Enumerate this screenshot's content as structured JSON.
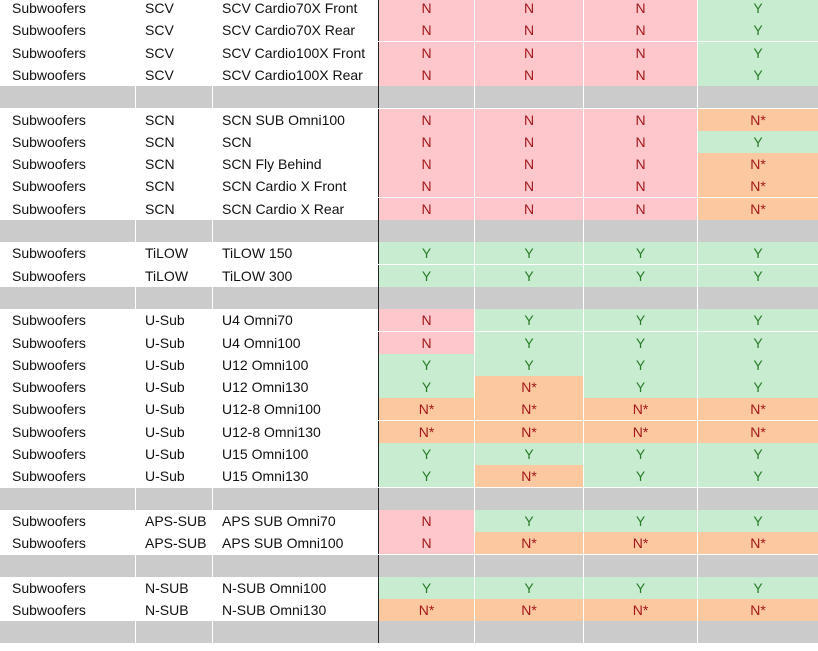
{
  "colors": {
    "yes_bg": "#c8ecd0",
    "yes_text": "#2a7d2a",
    "no_bg": "#fdc7cc",
    "no_text": "#a3191c",
    "cond_bg": "#fcc8a0",
    "cond_text": "#a3191c",
    "separator": "#cbcbcb"
  },
  "rows": [
    {
      "type": "data",
      "category": "Subwoofers",
      "series": "SCV",
      "model": "SCV Cardio70X Front",
      "v": [
        "N",
        "N",
        "N",
        "Y"
      ]
    },
    {
      "type": "data",
      "category": "Subwoofers",
      "series": "SCV",
      "model": "SCV Cardio70X Rear",
      "v": [
        "N",
        "N",
        "N",
        "Y"
      ]
    },
    {
      "type": "data",
      "category": "Subwoofers",
      "series": "SCV",
      "model": "SCV Cardio100X Front",
      "v": [
        "N",
        "N",
        "N",
        "Y"
      ]
    },
    {
      "type": "data",
      "category": "Subwoofers",
      "series": "SCV",
      "model": "SCV Cardio100X Rear",
      "v": [
        "N",
        "N",
        "N",
        "Y"
      ]
    },
    {
      "type": "sep"
    },
    {
      "type": "data",
      "category": "Subwoofers",
      "series": "SCN",
      "model": "SCN SUB Omni100",
      "v": [
        "N",
        "N",
        "N",
        "N*"
      ]
    },
    {
      "type": "data",
      "category": "Subwoofers",
      "series": "SCN",
      "model": "SCN",
      "v": [
        "N",
        "N",
        "N",
        "Y"
      ]
    },
    {
      "type": "data",
      "category": "Subwoofers",
      "series": "SCN",
      "model": "SCN Fly Behind",
      "v": [
        "N",
        "N",
        "N",
        "N*"
      ]
    },
    {
      "type": "data",
      "category": "Subwoofers",
      "series": "SCN",
      "model": "SCN Cardio X Front",
      "v": [
        "N",
        "N",
        "N",
        "N*"
      ]
    },
    {
      "type": "data",
      "category": "Subwoofers",
      "series": "SCN",
      "model": "SCN Cardio X Rear",
      "v": [
        "N",
        "N",
        "N",
        "N*"
      ]
    },
    {
      "type": "sep"
    },
    {
      "type": "data",
      "category": "Subwoofers",
      "series": "TiLOW",
      "model": "TiLOW 150",
      "v": [
        "Y",
        "Y",
        "Y",
        "Y"
      ]
    },
    {
      "type": "data",
      "category": "Subwoofers",
      "series": "TiLOW",
      "model": "TiLOW 300",
      "v": [
        "Y",
        "Y",
        "Y",
        "Y"
      ]
    },
    {
      "type": "sep"
    },
    {
      "type": "data",
      "category": "Subwoofers",
      "series": "U-Sub",
      "model": "U4 Omni70",
      "v": [
        "N",
        "Y",
        "Y",
        "Y"
      ]
    },
    {
      "type": "data",
      "category": "Subwoofers",
      "series": "U-Sub",
      "model": "U4 Omni100",
      "v": [
        "N",
        "Y",
        "Y",
        "Y"
      ]
    },
    {
      "type": "data",
      "category": "Subwoofers",
      "series": "U-Sub",
      "model": "U12 Omni100",
      "v": [
        "Y",
        "Y",
        "Y",
        "Y"
      ]
    },
    {
      "type": "data",
      "category": "Subwoofers",
      "series": "U-Sub",
      "model": "U12 Omni130",
      "v": [
        "Y",
        "N*",
        "Y",
        "Y"
      ]
    },
    {
      "type": "data",
      "category": "Subwoofers",
      "series": "U-Sub",
      "model": "U12-8 Omni100",
      "v": [
        "N*",
        "N*",
        "N*",
        "N*"
      ]
    },
    {
      "type": "data",
      "category": "Subwoofers",
      "series": "U-Sub",
      "model": "U12-8 Omni130",
      "v": [
        "N*",
        "N*",
        "N*",
        "N*"
      ]
    },
    {
      "type": "data",
      "category": "Subwoofers",
      "series": "U-Sub",
      "model": "U15 Omni100",
      "v": [
        "Y",
        "Y",
        "Y",
        "Y"
      ]
    },
    {
      "type": "data",
      "category": "Subwoofers",
      "series": "U-Sub",
      "model": "U15 Omni130",
      "v": [
        "Y",
        "N*",
        "Y",
        "Y"
      ]
    },
    {
      "type": "sep"
    },
    {
      "type": "data",
      "category": "Subwoofers",
      "series": "APS-SUB",
      "model": "APS SUB Omni70",
      "v": [
        "N",
        "Y",
        "Y",
        "Y"
      ]
    },
    {
      "type": "data",
      "category": "Subwoofers",
      "series": "APS-SUB",
      "model": "APS SUB Omni100",
      "v": [
        "N",
        "N*",
        "N*",
        "N*"
      ]
    },
    {
      "type": "sep"
    },
    {
      "type": "data",
      "category": "Subwoofers",
      "series": "N-SUB",
      "model": "N-SUB Omni100",
      "v": [
        "Y",
        "Y",
        "Y",
        "Y"
      ]
    },
    {
      "type": "data",
      "category": "Subwoofers",
      "series": "N-SUB",
      "model": "N-SUB Omni130",
      "v": [
        "N*",
        "N*",
        "N*",
        "N*"
      ]
    },
    {
      "type": "sep"
    }
  ]
}
